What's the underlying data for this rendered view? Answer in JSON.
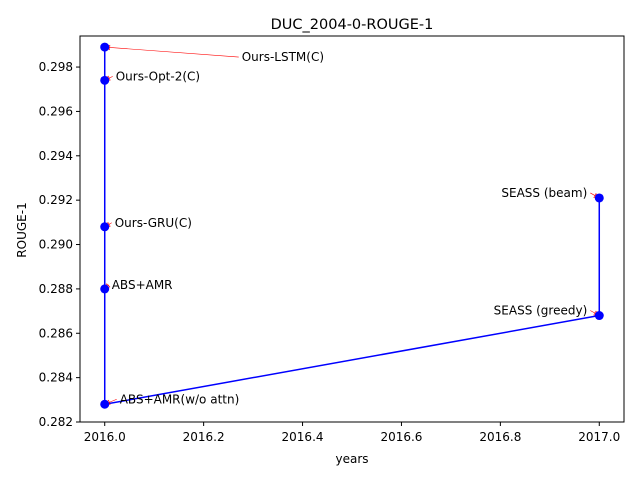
{
  "chart_data": {
    "type": "line",
    "title": "DUC_2004-0-ROUGE-1",
    "xlabel": "years",
    "ylabel": "ROUGE-1",
    "xlim": [
      1.0,
      2017.05
    ],
    "ylim": [
      0.282,
      0.2994
    ],
    "x_ticks": [
      2016.0,
      2016.2,
      2016.4,
      2016.6,
      2016.8,
      2017.0
    ],
    "x_tick_labels": [
      "2016.0",
      "2016.2",
      "2016.4",
      "2016.6",
      "2016.8",
      "2017.0"
    ],
    "y_ticks": [
      0.282,
      0.284,
      0.286,
      0.288,
      0.29,
      0.292,
      0.294,
      0.296,
      0.298
    ],
    "y_tick_labels": [
      "0.282",
      "0.284",
      "0.286",
      "0.288",
      "0.290",
      "0.292",
      "0.294",
      "0.296",
      "0.298"
    ],
    "grid": false,
    "legend": "none",
    "colors": {
      "line": "#0000ff",
      "marker": "#0000ff",
      "annotation_arrow": "#ff0000"
    },
    "points": [
      {
        "label": "Ours-LSTM(C)",
        "x": 2016,
        "y": 0.2989
      },
      {
        "label": "Ours-Opt-2(C)",
        "x": 2016,
        "y": 0.2974
      },
      {
        "label": "Ours-GRU(C)",
        "x": 2016,
        "y": 0.2908
      },
      {
        "label": "ABS+AMR",
        "x": 2016,
        "y": 0.288
      },
      {
        "label": "ABS+AMR(w/o attn)",
        "x": 2016,
        "y": 0.2828
      },
      {
        "label": "SEASS (greedy)",
        "x": 2017,
        "y": 0.2868
      },
      {
        "label": "SEASS (beam)",
        "x": 2017,
        "y": 0.2921
      }
    ]
  }
}
